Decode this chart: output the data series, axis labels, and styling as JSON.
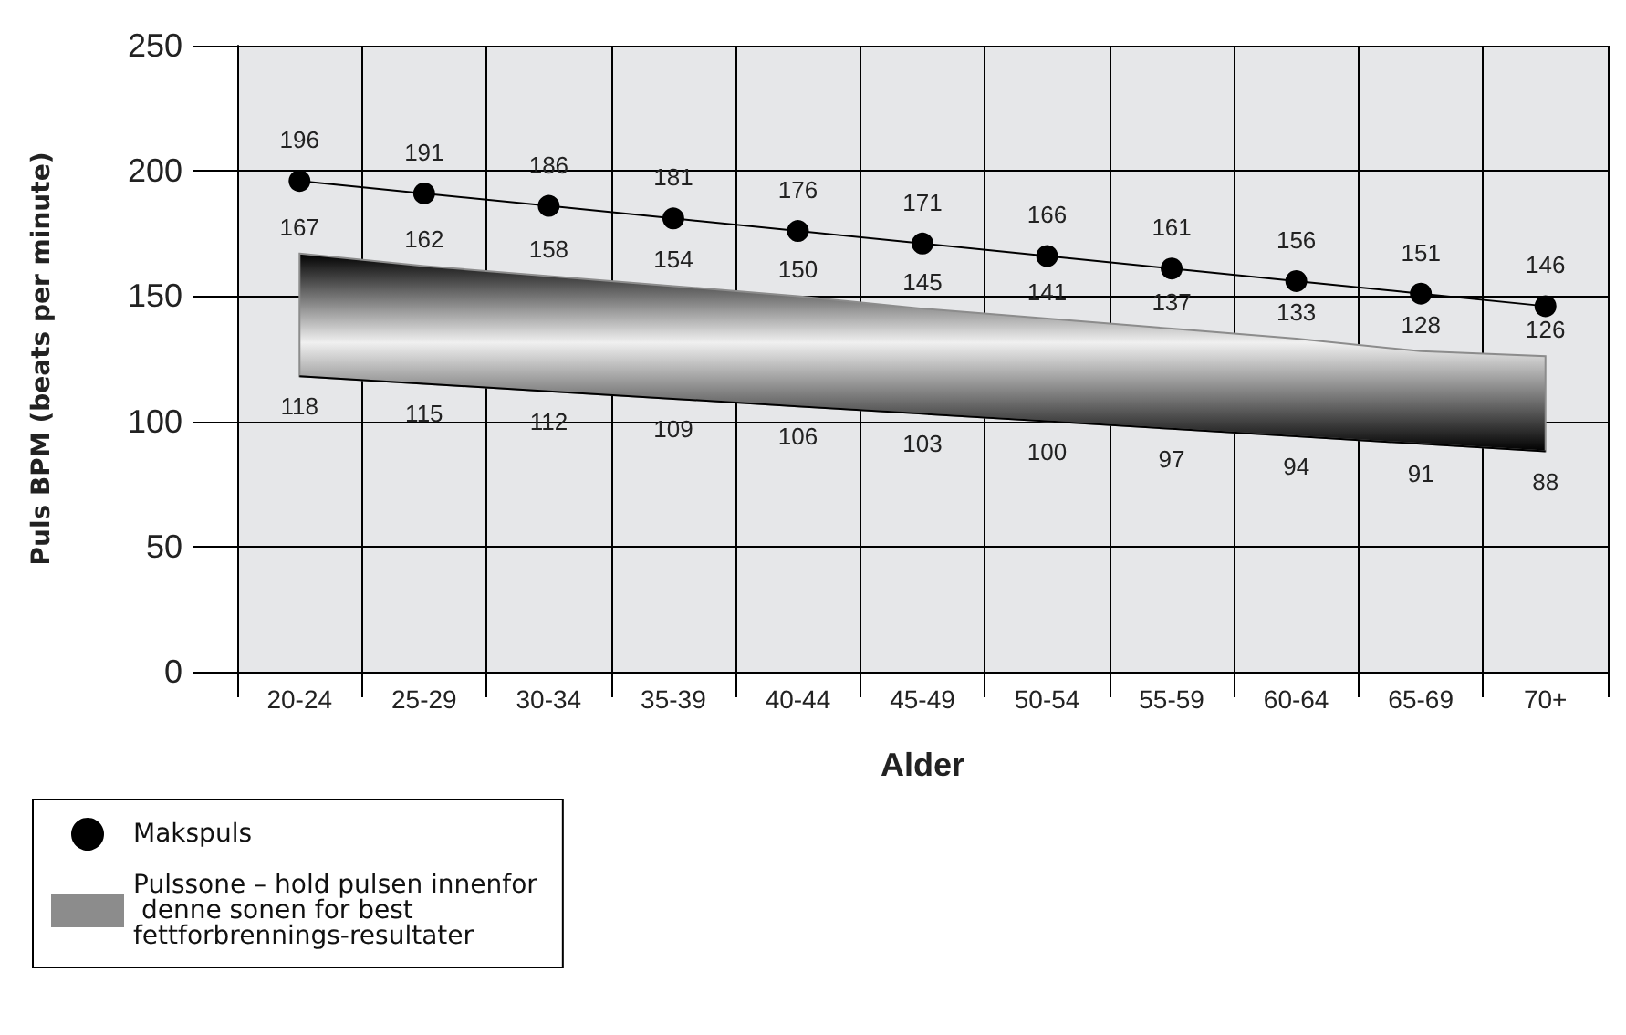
{
  "chart_data": {
    "type": "line",
    "xlabel": "Alder",
    "ylabel": "Puls BPM (beats per minute)",
    "categories": [
      "20-24",
      "25-29",
      "30-34",
      "35-39",
      "40-44",
      "45-49",
      "50-54",
      "55-59",
      "60-64",
      "65-69",
      "70+"
    ],
    "series": [
      {
        "name": "Makspuls",
        "color": "#000000",
        "marker": "circle",
        "values": [
          196,
          191,
          186,
          181,
          176,
          171,
          166,
          161,
          156,
          151,
          146
        ]
      },
      {
        "name": "Pulssone – hold pulsen innenfor denne sonen for best fettforbrennings-resultater",
        "type": "area",
        "color": "#8c8c8c",
        "values": [
          167,
          162,
          158,
          154,
          150,
          145,
          141,
          137,
          133,
          128,
          126
        ]
      },
      {
        "color": "#000000",
        "marker": "none",
        "values": [
          118,
          115,
          112,
          109,
          106,
          103,
          100,
          97,
          94,
          91,
          88
        ]
      }
    ],
    "ylim": [
      0,
      250
    ],
    "yticks": [
      0,
      50,
      100,
      150,
      200,
      250
    ],
    "grid": true,
    "data_labels": true,
    "legend": "bottom left"
  }
}
